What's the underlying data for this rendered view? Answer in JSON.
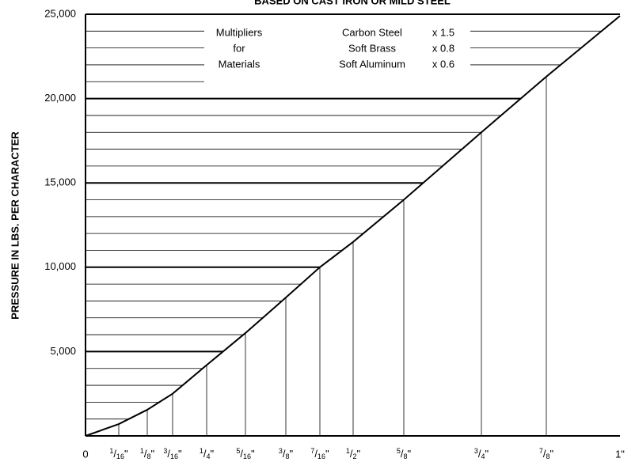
{
  "chart_data": {
    "type": "line",
    "title": "BASED ON CAST IRON OR MILD STEEL",
    "y_label": "PRESSURE IN LBS. PER CHARACTER",
    "categories": [
      "0",
      "1/16\"",
      "1/8\"",
      "3/16\"",
      "1/4\"",
      "5/16\"",
      "3/8\"",
      "7/16\"",
      "1/2\"",
      "5/8\"",
      "3/4\"",
      "7/8\"",
      "1\""
    ],
    "values": [
      0,
      700,
      1550,
      2500,
      4200,
      6100,
      8200,
      10000,
      11500,
      14000,
      18000,
      21300,
      24900
    ],
    "ylim": [
      0,
      25000
    ],
    "yticks": [
      {
        "value": 5000,
        "label": "5,000"
      },
      {
        "value": 10000,
        "label": "10,000"
      },
      {
        "value": 15000,
        "label": "15,000"
      },
      {
        "value": 20000,
        "label": "20,000"
      },
      {
        "value": 25000,
        "label": "25,000"
      }
    ],
    "yminor": [
      1000,
      2000,
      3000,
      4000,
      6000,
      7000,
      8000,
      9000,
      11000,
      12000,
      13000,
      14000,
      16000,
      17000,
      18000,
      19000,
      21000,
      22000,
      23000,
      24000
    ],
    "color": "#000000",
    "annotations": {
      "left": [
        "Multipliers",
        "for",
        "Materials"
      ],
      "materials": [
        "Carbon Steel",
        "Soft Brass",
        "Soft Aluminum"
      ],
      "factors": [
        "x 1.5",
        "x 0.8",
        "x 0.6"
      ]
    }
  }
}
